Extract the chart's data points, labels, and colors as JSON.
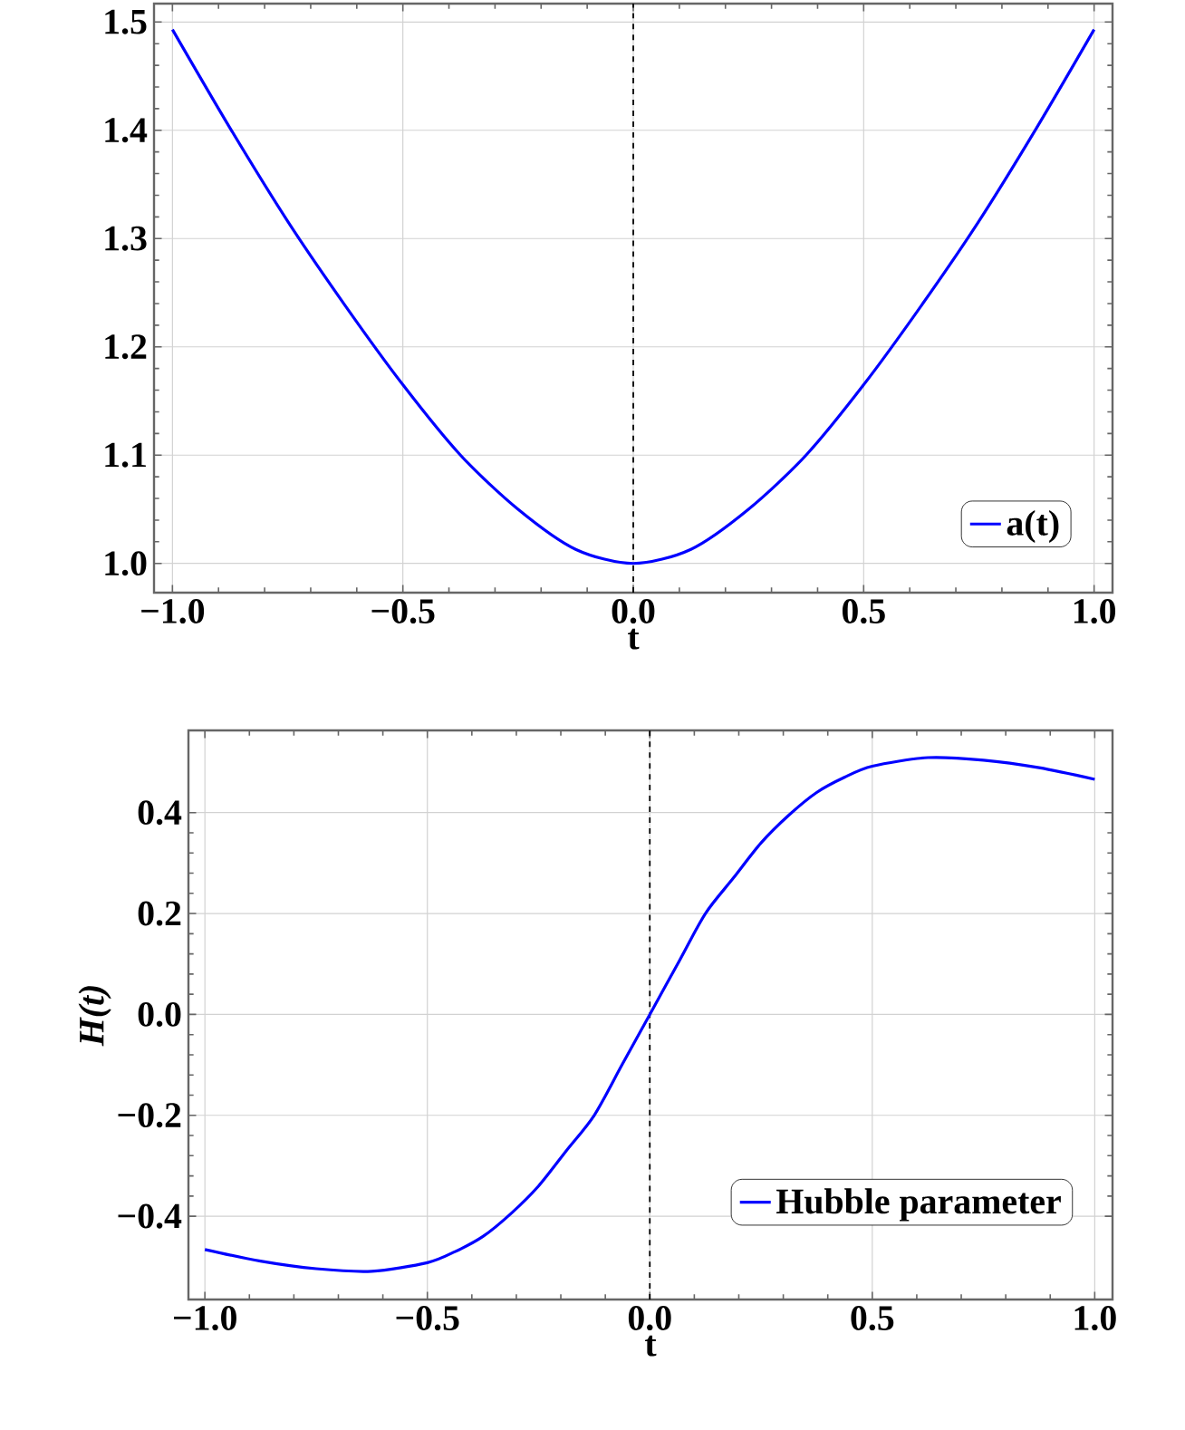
{
  "chart_data": [
    {
      "type": "line",
      "xlabel": "t",
      "xlim": [
        -1.04,
        1.04
      ],
      "ylim": [
        0.973,
        1.517
      ],
      "xticks": [
        {
          "value": -1,
          "label": "−1.0"
        },
        {
          "value": -0.5,
          "label": "−0.5"
        },
        {
          "value": 0,
          "label": "0.0"
        },
        {
          "value": 0.5,
          "label": "0.5"
        },
        {
          "value": 1,
          "label": "1.0"
        }
      ],
      "yticks": [
        {
          "value": 1,
          "label": "1.0"
        },
        1.1,
        1.2,
        1.3,
        1.4,
        1.5
      ],
      "grid": true,
      "legend": "bottom right",
      "ref_lines": [
        {
          "axis": "x",
          "value": 0,
          "color": "#000000",
          "line_style": "dashed"
        }
      ],
      "series": [
        {
          "name": "a(t)",
          "color": "#0000ff",
          "x": [
            -1,
            -0.875,
            -0.75,
            -0.625,
            -0.5,
            -0.375,
            -0.25,
            -0.125,
            0,
            0.125,
            0.25,
            0.375,
            0.5,
            0.625,
            0.75,
            0.875,
            1
          ],
          "values": [
            1.493,
            1.402,
            1.316,
            1.238,
            1.165,
            1.1,
            1.05,
            1.013,
            1.0,
            1.013,
            1.05,
            1.1,
            1.165,
            1.238,
            1.316,
            1.402,
            1.493
          ]
        }
      ]
    },
    {
      "type": "line",
      "xlabel": "t",
      "ylabel": "H(t)",
      "xlim": [
        -1.037,
        1.04
      ],
      "ylim": [
        -0.565,
        0.563
      ],
      "xticks": [
        {
          "value": -1,
          "label": "−1.0"
        },
        {
          "value": -0.5,
          "label": "−0.5"
        },
        {
          "value": 0,
          "label": "0.0"
        },
        {
          "value": 0.5,
          "label": "0.5"
        },
        {
          "value": 1,
          "label": "1.0"
        }
      ],
      "yticks": [
        {
          "value": -0.4,
          "label": "−0.4"
        },
        {
          "value": -0.2,
          "label": "−0.2"
        },
        {
          "value": 0,
          "label": "0.0"
        },
        0.2,
        0.4
      ],
      "grid": true,
      "legend": "bottom right",
      "ref_lines": [
        {
          "axis": "x",
          "value": 0,
          "color": "#000000",
          "line_style": "dashed"
        }
      ],
      "series": [
        {
          "name": "Hubble parameter",
          "color": "#0000ff",
          "x": [
            -1,
            -0.875,
            -0.75,
            -0.625,
            -0.5,
            -0.4375,
            -0.375,
            -0.3125,
            -0.25,
            -0.1875,
            -0.125,
            -0.0625,
            0,
            0.0625,
            0.125,
            0.1875,
            0.25,
            0.3125,
            0.375,
            0.4375,
            0.5,
            0.625,
            0.75,
            0.875,
            1
          ],
          "values": [
            -0.466,
            -0.489,
            -0.504,
            -0.509,
            -0.492,
            -0.47,
            -0.44,
            -0.395,
            -0.34,
            -0.27,
            -0.2,
            -0.1,
            0,
            0.1,
            0.2,
            0.27,
            0.34,
            0.395,
            0.44,
            0.47,
            0.492,
            0.509,
            0.504,
            0.489,
            0.466
          ]
        }
      ]
    }
  ]
}
